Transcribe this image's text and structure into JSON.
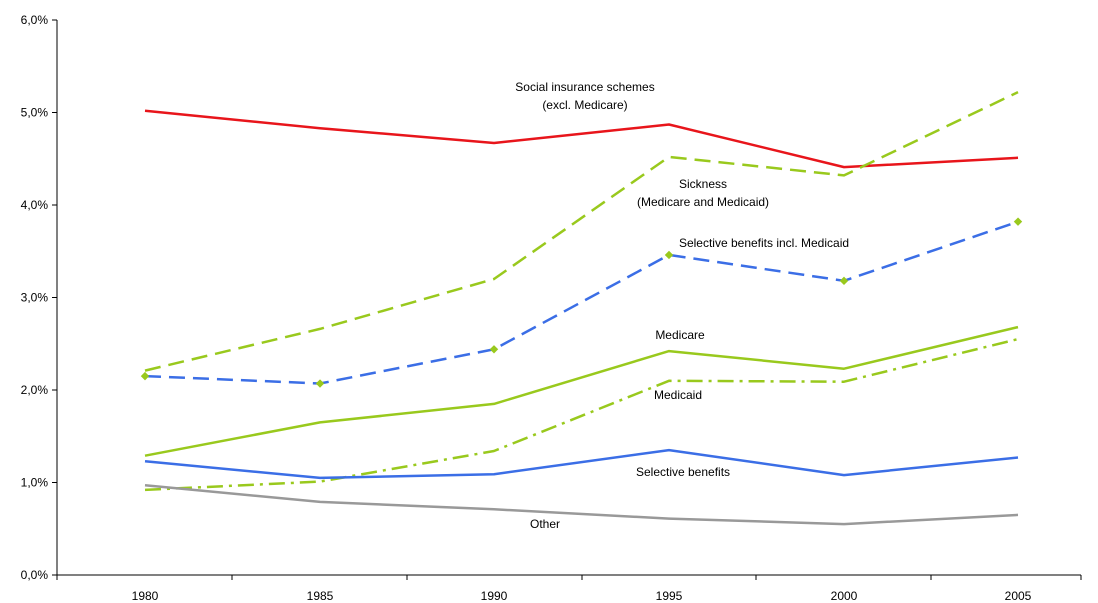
{
  "chart_data": {
    "type": "line",
    "title": "",
    "xlabel": "",
    "ylabel": "",
    "x": [
      1980,
      1985,
      1990,
      1995,
      2000,
      2005
    ],
    "x_tick_labels": [
      "1980",
      "1985",
      "1990",
      "1995",
      "2000",
      "2005"
    ],
    "ylim": [
      0,
      6
    ],
    "y_ticks": [
      0,
      1,
      2,
      3,
      4,
      5,
      6
    ],
    "y_tick_labels": [
      "0,0%",
      "1,0%",
      "2,0%",
      "3,0%",
      "4,0%",
      "5,0%",
      "6,0%"
    ],
    "grid": false,
    "legend": "none",
    "series": [
      {
        "id": "social",
        "name": "Social insurance schemes (excl. Medicare)",
        "label_lines": [
          "Social insurance schemes",
          "(excl. Medicare)"
        ],
        "values": [
          5.02,
          4.83,
          4.67,
          4.87,
          4.41,
          4.51
        ],
        "color": "#e8151b",
        "style": "solid",
        "markers": false
      },
      {
        "id": "sickness",
        "name": "Sickness (Medicare and Medicaid)",
        "label_lines": [
          "Sickness",
          "(Medicare and Medicaid)"
        ],
        "values": [
          2.21,
          2.66,
          3.2,
          4.52,
          4.32,
          5.22
        ],
        "color": "#99c91d",
        "style": "dashed",
        "markers": false
      },
      {
        "id": "selective_medicaid",
        "name": "Selective benefits incl. Medicaid",
        "label_lines": [
          "Selective benefits incl. Medicaid"
        ],
        "values": [
          2.15,
          2.07,
          2.44,
          3.46,
          3.18,
          3.82
        ],
        "color": "#3b6ee6",
        "style": "dashed",
        "markers": true
      },
      {
        "id": "medicare",
        "name": "Medicare",
        "label_lines": [
          "Medicare"
        ],
        "values": [
          1.29,
          1.65,
          1.85,
          2.42,
          2.23,
          2.68
        ],
        "color": "#99c91d",
        "style": "solid",
        "markers": false
      },
      {
        "id": "medicaid",
        "name": "Medicaid",
        "label_lines": [
          "Medicaid"
        ],
        "values": [
          0.92,
          1.01,
          1.34,
          2.1,
          2.09,
          2.55
        ],
        "color": "#99c91d",
        "style": "dashdot",
        "markers": false
      },
      {
        "id": "selective",
        "name": "Selective benefits",
        "label_lines": [
          "Selective benefits"
        ],
        "values": [
          1.23,
          1.05,
          1.09,
          1.35,
          1.08,
          1.27
        ],
        "color": "#3b6ee6",
        "style": "solid",
        "markers": false
      },
      {
        "id": "other",
        "name": "Other",
        "label_lines": [
          "Other"
        ],
        "values": [
          0.97,
          0.79,
          0.71,
          0.61,
          0.55,
          0.65
        ],
        "color": "#999999",
        "style": "solid",
        "markers": false
      }
    ]
  }
}
